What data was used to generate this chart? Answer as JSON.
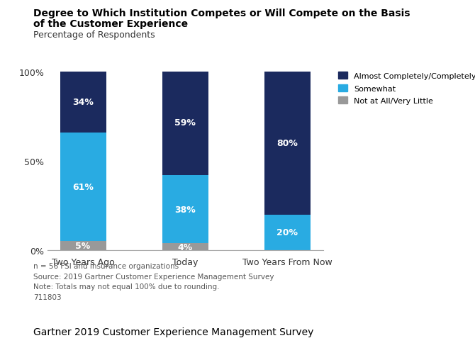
{
  "title_line1": "Degree to Which Institution Competes or Will Compete on the Basis",
  "title_line2": "of the Customer Experience",
  "subtitle": "Percentage of Respondents",
  "categories": [
    "Two Years Ago",
    "Today",
    "Two Years From Now"
  ],
  "series": {
    "not_at_all": [
      5,
      4,
      0
    ],
    "somewhat": [
      61,
      38,
      20
    ],
    "almost_completely": [
      34,
      59,
      80
    ]
  },
  "labels": {
    "not_at_all": [
      "5%",
      "4%",
      ""
    ],
    "somewhat": [
      "61%",
      "38%",
      "20%"
    ],
    "almost_completely": [
      "34%",
      "59%",
      "80%"
    ]
  },
  "colors": {
    "not_at_all": "#999999",
    "somewhat": "#29abe2",
    "almost_completely": "#1b2a5e"
  },
  "legend_labels": [
    "Almost Completely/Completely",
    "Somewhat",
    "Not at All/Very Little"
  ],
  "legend_colors": [
    "#1b2a5e",
    "#29abe2",
    "#999999"
  ],
  "ylim": [
    0,
    100
  ],
  "yticks": [
    0,
    50,
    100
  ],
  "ytick_labels": [
    "0%",
    "50%",
    "100%"
  ],
  "footnotes": [
    "n = 56 FSI and insurance organizations",
    "Source: 2019 Gartner Customer Experience Management Survey",
    "Note: Totals may not equal 100% due to rounding.",
    "711803"
  ],
  "footer": "Gartner 2019 Customer Experience Management Survey",
  "background_color": "#ffffff",
  "bar_width": 0.45
}
